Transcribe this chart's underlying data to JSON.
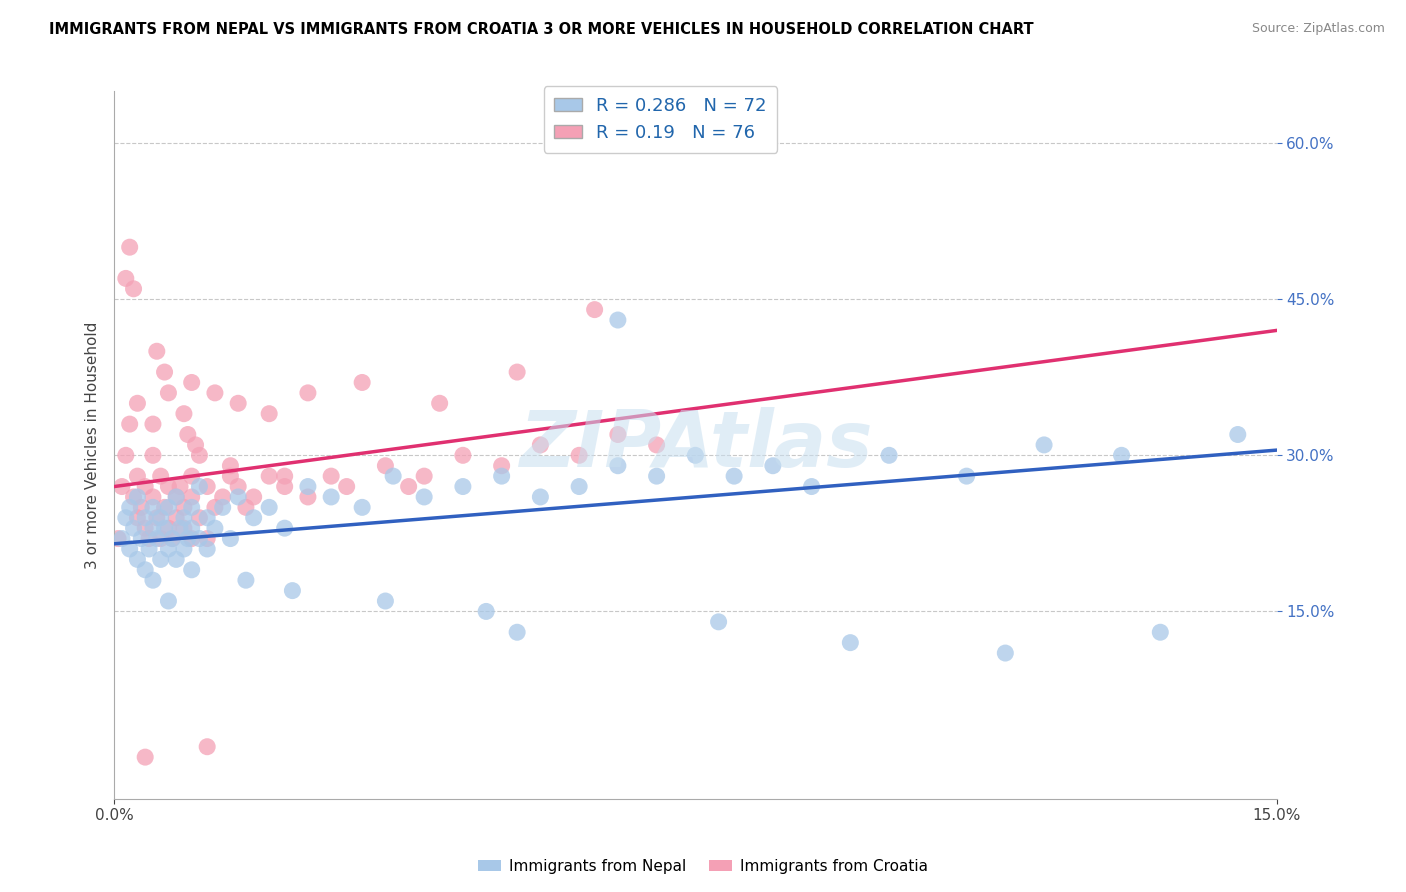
{
  "title": "IMMIGRANTS FROM NEPAL VS IMMIGRANTS FROM CROATIA 3 OR MORE VEHICLES IN HOUSEHOLD CORRELATION CHART",
  "source": "Source: ZipAtlas.com",
  "ylabel": "3 or more Vehicles in Household",
  "legend_label1": "Immigrants from Nepal",
  "legend_label2": "Immigrants from Croatia",
  "R1": 0.286,
  "N1": 72,
  "R2": 0.19,
  "N2": 76,
  "color1": "#a8c8e8",
  "color2": "#f4a0b5",
  "line_color1": "#3060c0",
  "line_color2": "#e03070",
  "xlim": [
    0.0,
    15.0
  ],
  "ylim": [
    -3.0,
    65.0
  ],
  "background_color": "#ffffff",
  "grid_color": "#c8c8c8",
  "watermark": "ZIPat las",
  "nepal_x": [
    0.1,
    0.15,
    0.2,
    0.2,
    0.25,
    0.3,
    0.3,
    0.35,
    0.4,
    0.4,
    0.45,
    0.5,
    0.5,
    0.5,
    0.55,
    0.6,
    0.6,
    0.65,
    0.7,
    0.7,
    0.75,
    0.8,
    0.8,
    0.85,
    0.9,
    0.9,
    0.95,
    1.0,
    1.0,
    1.0,
    1.1,
    1.1,
    1.2,
    1.2,
    1.3,
    1.4,
    1.5,
    1.6,
    1.8,
    2.0,
    2.2,
    2.5,
    2.8,
    3.2,
    3.6,
    4.0,
    4.5,
    5.0,
    5.5,
    6.0,
    6.5,
    7.0,
    7.5,
    8.0,
    8.5,
    9.0,
    10.0,
    11.0,
    12.0,
    13.0,
    6.5,
    5.2,
    7.8,
    9.5,
    11.5,
    13.5,
    14.5,
    3.5,
    4.8,
    2.3,
    1.7,
    0.7
  ],
  "nepal_y": [
    22.0,
    24.0,
    21.0,
    25.0,
    23.0,
    20.0,
    26.0,
    22.0,
    24.0,
    19.0,
    21.0,
    23.0,
    25.0,
    18.0,
    22.0,
    24.0,
    20.0,
    23.0,
    21.0,
    25.0,
    22.0,
    20.0,
    26.0,
    23.0,
    21.0,
    24.0,
    22.0,
    19.0,
    23.0,
    25.0,
    22.0,
    27.0,
    21.0,
    24.0,
    23.0,
    25.0,
    22.0,
    26.0,
    24.0,
    25.0,
    23.0,
    27.0,
    26.0,
    25.0,
    28.0,
    26.0,
    27.0,
    28.0,
    26.0,
    27.0,
    29.0,
    28.0,
    30.0,
    28.0,
    29.0,
    27.0,
    30.0,
    28.0,
    31.0,
    30.0,
    43.0,
    13.0,
    14.0,
    12.0,
    11.0,
    13.0,
    32.0,
    16.0,
    15.0,
    17.0,
    18.0,
    16.0
  ],
  "croatia_x": [
    0.05,
    0.1,
    0.15,
    0.2,
    0.2,
    0.25,
    0.3,
    0.3,
    0.35,
    0.4,
    0.4,
    0.45,
    0.5,
    0.5,
    0.55,
    0.6,
    0.6,
    0.65,
    0.7,
    0.7,
    0.75,
    0.8,
    0.8,
    0.85,
    0.9,
    0.9,
    1.0,
    1.0,
    1.0,
    1.1,
    1.1,
    1.2,
    1.2,
    1.3,
    1.4,
    1.5,
    1.6,
    1.7,
    1.8,
    2.0,
    2.2,
    2.5,
    2.8,
    3.0,
    3.5,
    4.0,
    4.5,
    5.0,
    5.5,
    6.0,
    6.5,
    7.0,
    0.3,
    0.5,
    0.7,
    0.9,
    1.0,
    1.3,
    1.6,
    2.0,
    2.5,
    3.2,
    4.2,
    5.2,
    6.2,
    0.15,
    0.25,
    0.55,
    0.65,
    0.95,
    1.05,
    1.5,
    2.2,
    3.8,
    1.2,
    0.4
  ],
  "croatia_y": [
    22.0,
    27.0,
    30.0,
    33.0,
    50.0,
    26.0,
    24.0,
    28.0,
    25.0,
    23.0,
    27.0,
    22.0,
    26.0,
    30.0,
    24.0,
    22.0,
    28.0,
    25.0,
    23.0,
    27.0,
    22.0,
    26.0,
    24.0,
    27.0,
    23.0,
    25.0,
    22.0,
    26.0,
    28.0,
    24.0,
    30.0,
    22.0,
    27.0,
    25.0,
    26.0,
    28.0,
    27.0,
    25.0,
    26.0,
    28.0,
    27.0,
    26.0,
    28.0,
    27.0,
    29.0,
    28.0,
    30.0,
    29.0,
    31.0,
    30.0,
    32.0,
    31.0,
    35.0,
    33.0,
    36.0,
    34.0,
    37.0,
    36.0,
    35.0,
    34.0,
    36.0,
    37.0,
    35.0,
    38.0,
    44.0,
    47.0,
    46.0,
    40.0,
    38.0,
    32.0,
    31.0,
    29.0,
    28.0,
    27.0,
    2.0,
    1.0
  ],
  "line_nepal_x0": 0.0,
  "line_nepal_y0": 21.5,
  "line_nepal_x1": 15.0,
  "line_nepal_y1": 30.5,
  "line_croatia_x0": 0.0,
  "line_croatia_y0": 27.0,
  "line_croatia_x1": 15.0,
  "line_croatia_y1": 42.0
}
